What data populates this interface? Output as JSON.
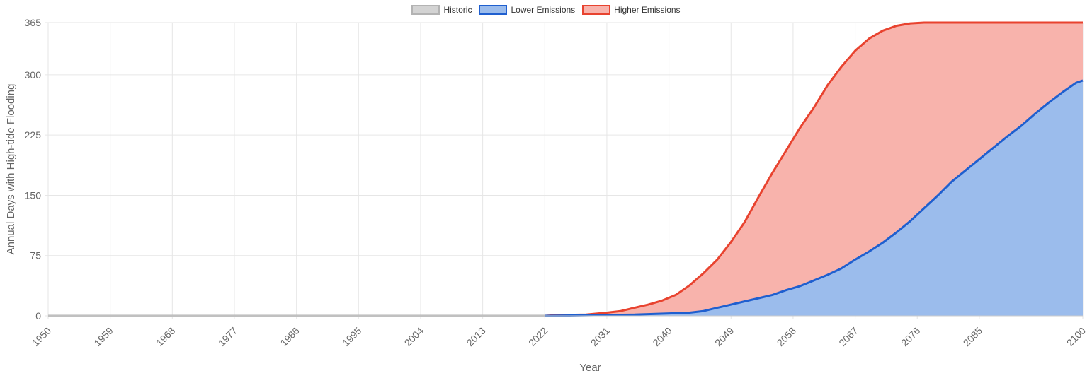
{
  "chart_data": {
    "type": "area",
    "xlabel": "Year",
    "ylabel": "Annual Days with High-tide Flooding",
    "xlim": [
      1950,
      2100
    ],
    "ylim": [
      0,
      365
    ],
    "x_ticks": [
      "1950",
      "1959",
      "1968",
      "1977",
      "1986",
      "1995",
      "2004",
      "2013",
      "2022",
      "2031",
      "2040",
      "2049",
      "2058",
      "2067",
      "2076",
      "2085",
      "2100"
    ],
    "y_ticks": [
      "0",
      "75",
      "150",
      "225",
      "300",
      "365"
    ],
    "legend": {
      "position": "top-center"
    },
    "grid": true,
    "series": [
      {
        "name": "Historic",
        "color": "#b3b3b3",
        "fill": "#d3d3d3",
        "points": [
          [
            1950,
            0
          ],
          [
            2022,
            0
          ]
        ]
      },
      {
        "name": "Lower Emissions",
        "color": "#1f5fcf",
        "fill": "#9bbcec",
        "points": [
          [
            2022,
            0
          ],
          [
            2030,
            1
          ],
          [
            2035,
            1.5
          ],
          [
            2040,
            3
          ],
          [
            2043,
            4
          ],
          [
            2045,
            6
          ],
          [
            2047,
            10
          ],
          [
            2049,
            14
          ],
          [
            2051,
            18
          ],
          [
            2053,
            22
          ],
          [
            2055,
            26
          ],
          [
            2057,
            32
          ],
          [
            2059,
            37
          ],
          [
            2061,
            44
          ],
          [
            2063,
            51
          ],
          [
            2065,
            59
          ],
          [
            2067,
            70
          ],
          [
            2069,
            80
          ],
          [
            2071,
            91
          ],
          [
            2073,
            104
          ],
          [
            2075,
            118
          ],
          [
            2077,
            134
          ],
          [
            2079,
            150
          ],
          [
            2081,
            167
          ],
          [
            2083,
            181
          ],
          [
            2085,
            195
          ],
          [
            2087,
            209
          ],
          [
            2089,
            223
          ],
          [
            2091,
            236
          ],
          [
            2093,
            251
          ],
          [
            2095,
            265
          ],
          [
            2097,
            278
          ],
          [
            2099,
            290
          ],
          [
            2100,
            293
          ]
        ]
      },
      {
        "name": "Higher Emissions",
        "color": "#e8432f",
        "fill": "#f8b3ac",
        "points": [
          [
            2022,
            0
          ],
          [
            2024,
            1
          ],
          [
            2028,
            1.5
          ],
          [
            2031,
            4
          ],
          [
            2033,
            6
          ],
          [
            2035,
            10
          ],
          [
            2037,
            14
          ],
          [
            2039,
            19
          ],
          [
            2041,
            26
          ],
          [
            2043,
            38
          ],
          [
            2045,
            53
          ],
          [
            2047,
            70
          ],
          [
            2049,
            92
          ],
          [
            2051,
            117
          ],
          [
            2053,
            148
          ],
          [
            2055,
            178
          ],
          [
            2057,
            206
          ],
          [
            2059,
            234
          ],
          [
            2061,
            259
          ],
          [
            2063,
            287
          ],
          [
            2065,
            310
          ],
          [
            2067,
            330
          ],
          [
            2069,
            345
          ],
          [
            2071,
            355
          ],
          [
            2073,
            361
          ],
          [
            2075,
            364
          ],
          [
            2077,
            365
          ],
          [
            2100,
            365
          ]
        ]
      }
    ]
  }
}
